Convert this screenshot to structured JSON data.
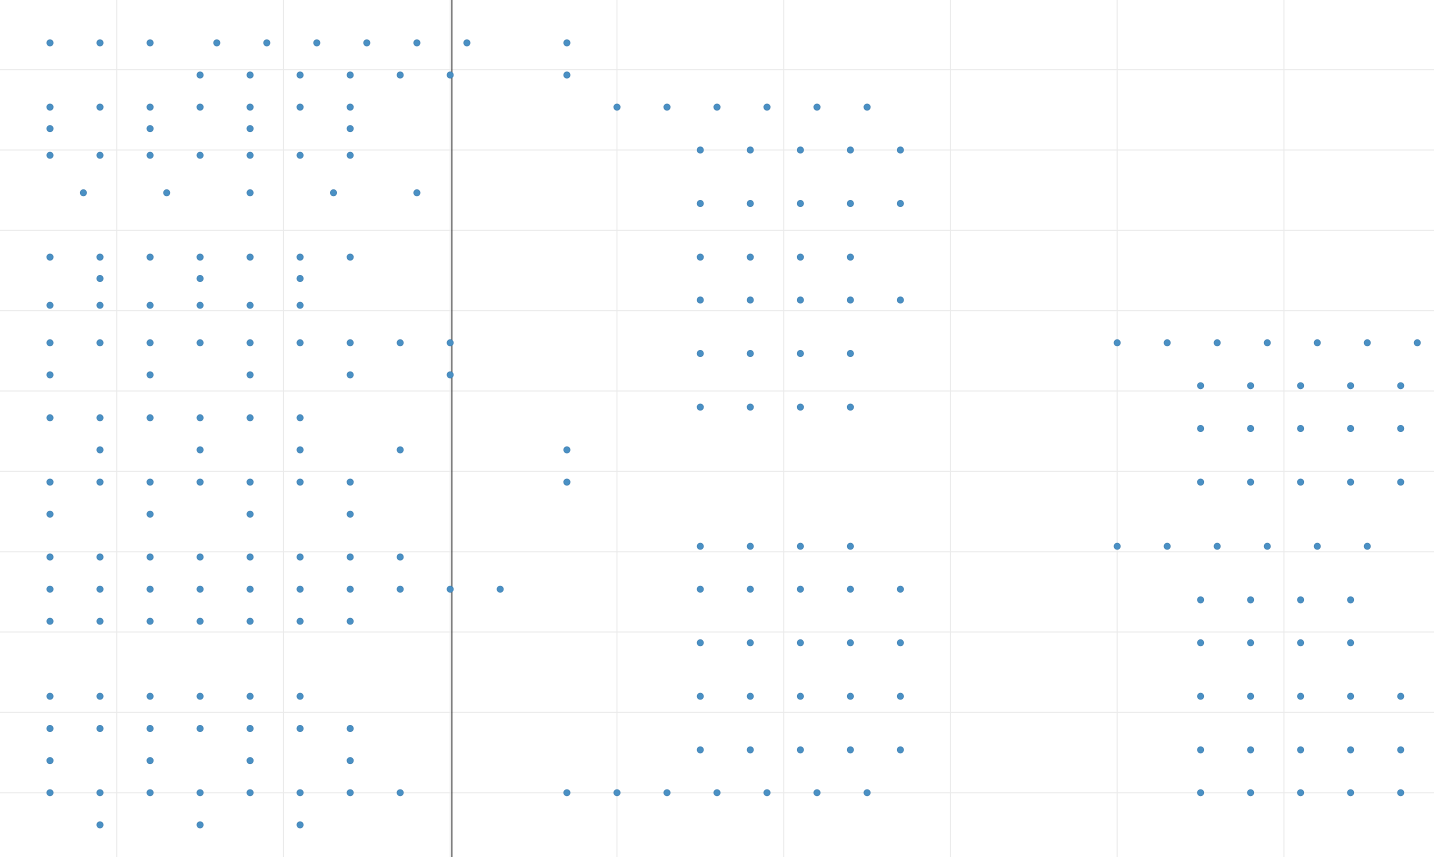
{
  "chart_data": {
    "type": "scatter",
    "grid": true,
    "colors": {
      "dot": "#4a90c4",
      "dot_stroke": "#3b7db0",
      "grid": "#eaeaea",
      "divider": "#333333",
      "background": "#ffffff"
    },
    "series": [
      {
        "points": [
          [
            0.3,
            8.0
          ],
          [
            0.6,
            8.0
          ],
          [
            0.9,
            8.0
          ],
          [
            1.3,
            8.0
          ],
          [
            1.6,
            8.0
          ],
          [
            1.9,
            8.0
          ],
          [
            2.2,
            8.0
          ],
          [
            2.5,
            8.0
          ],
          [
            2.8,
            8.0
          ],
          [
            1.2,
            7.7
          ],
          [
            1.5,
            7.7
          ],
          [
            1.8,
            7.7
          ],
          [
            2.1,
            7.7
          ],
          [
            2.4,
            7.7
          ],
          [
            2.7,
            7.7
          ],
          [
            0.3,
            7.4
          ],
          [
            0.6,
            7.4
          ],
          [
            0.9,
            7.4
          ],
          [
            1.2,
            7.4
          ],
          [
            1.5,
            7.4
          ],
          [
            1.8,
            7.4
          ],
          [
            2.1,
            7.4
          ],
          [
            0.3,
            7.2
          ],
          [
            0.9,
            7.2
          ],
          [
            1.5,
            7.2
          ],
          [
            2.1,
            7.2
          ],
          [
            0.3,
            6.95
          ],
          [
            0.6,
            6.95
          ],
          [
            0.9,
            6.95
          ],
          [
            1.2,
            6.95
          ],
          [
            1.5,
            6.95
          ],
          [
            1.8,
            6.95
          ],
          [
            2.1,
            6.95
          ],
          [
            0.5,
            6.6
          ],
          [
            1.0,
            6.6
          ],
          [
            1.5,
            6.6
          ],
          [
            2.0,
            6.6
          ],
          [
            2.5,
            6.6
          ],
          [
            0.3,
            6.0
          ],
          [
            0.6,
            6.0
          ],
          [
            0.9,
            6.0
          ],
          [
            1.2,
            6.0
          ],
          [
            1.5,
            6.0
          ],
          [
            1.8,
            6.0
          ],
          [
            2.1,
            6.0
          ],
          [
            0.6,
            5.8
          ],
          [
            1.2,
            5.8
          ],
          [
            1.8,
            5.8
          ],
          [
            0.3,
            5.55
          ],
          [
            0.6,
            5.55
          ],
          [
            0.9,
            5.55
          ],
          [
            1.2,
            5.55
          ],
          [
            1.5,
            5.55
          ],
          [
            1.8,
            5.55
          ],
          [
            0.3,
            5.2
          ],
          [
            0.6,
            5.2
          ],
          [
            0.9,
            5.2
          ],
          [
            1.2,
            5.2
          ],
          [
            1.5,
            5.2
          ],
          [
            1.8,
            5.2
          ],
          [
            2.1,
            5.2
          ],
          [
            2.4,
            5.2
          ],
          [
            2.7,
            5.2
          ],
          [
            0.3,
            4.9
          ],
          [
            0.9,
            4.9
          ],
          [
            1.5,
            4.9
          ],
          [
            2.1,
            4.9
          ],
          [
            2.7,
            4.9
          ],
          [
            0.3,
            4.5
          ],
          [
            0.6,
            4.5
          ],
          [
            0.9,
            4.5
          ],
          [
            1.2,
            4.5
          ],
          [
            1.5,
            4.5
          ],
          [
            1.8,
            4.5
          ],
          [
            0.6,
            4.2
          ],
          [
            1.2,
            4.2
          ],
          [
            1.8,
            4.2
          ],
          [
            2.4,
            4.2
          ],
          [
            0.3,
            3.9
          ],
          [
            0.6,
            3.9
          ],
          [
            0.9,
            3.9
          ],
          [
            1.2,
            3.9
          ],
          [
            1.5,
            3.9
          ],
          [
            1.8,
            3.9
          ],
          [
            2.1,
            3.9
          ],
          [
            0.3,
            3.6
          ],
          [
            0.9,
            3.6
          ],
          [
            1.5,
            3.6
          ],
          [
            2.1,
            3.6
          ],
          [
            0.3,
            3.2
          ],
          [
            0.6,
            3.2
          ],
          [
            0.9,
            3.2
          ],
          [
            1.2,
            3.2
          ],
          [
            1.5,
            3.2
          ],
          [
            1.8,
            3.2
          ],
          [
            2.1,
            3.2
          ],
          [
            2.4,
            3.2
          ],
          [
            0.3,
            2.9
          ],
          [
            0.6,
            2.9
          ],
          [
            0.9,
            2.9
          ],
          [
            1.2,
            2.9
          ],
          [
            1.5,
            2.9
          ],
          [
            1.8,
            2.9
          ],
          [
            2.1,
            2.9
          ],
          [
            2.4,
            2.9
          ],
          [
            2.7,
            2.9
          ],
          [
            3.0,
            2.9
          ],
          [
            0.3,
            2.6
          ],
          [
            0.6,
            2.6
          ],
          [
            0.9,
            2.6
          ],
          [
            1.2,
            2.6
          ],
          [
            1.5,
            2.6
          ],
          [
            1.8,
            2.6
          ],
          [
            2.1,
            2.6
          ],
          [
            0.3,
            1.9
          ],
          [
            0.6,
            1.9
          ],
          [
            0.9,
            1.9
          ],
          [
            1.2,
            1.9
          ],
          [
            1.5,
            1.9
          ],
          [
            1.8,
            1.9
          ],
          [
            0.3,
            1.6
          ],
          [
            0.6,
            1.6
          ],
          [
            0.9,
            1.6
          ],
          [
            1.2,
            1.6
          ],
          [
            1.5,
            1.6
          ],
          [
            1.8,
            1.6
          ],
          [
            2.1,
            1.6
          ],
          [
            0.3,
            1.3
          ],
          [
            0.9,
            1.3
          ],
          [
            1.5,
            1.3
          ],
          [
            2.1,
            1.3
          ],
          [
            0.3,
            1.0
          ],
          [
            0.6,
            1.0
          ],
          [
            0.9,
            1.0
          ],
          [
            1.2,
            1.0
          ],
          [
            1.5,
            1.0
          ],
          [
            1.8,
            1.0
          ],
          [
            2.1,
            1.0
          ],
          [
            2.4,
            1.0
          ],
          [
            0.6,
            0.7
          ],
          [
            1.2,
            0.7
          ],
          [
            1.8,
            0.7
          ],
          [
            3.4,
            8.0
          ],
          [
            3.4,
            7.7
          ],
          [
            3.7,
            7.4
          ],
          [
            4.0,
            7.4
          ],
          [
            4.3,
            7.4
          ],
          [
            4.6,
            7.4
          ],
          [
            4.9,
            7.4
          ],
          [
            5.2,
            7.4
          ],
          [
            4.2,
            7.0
          ],
          [
            4.5,
            7.0
          ],
          [
            4.8,
            7.0
          ],
          [
            5.1,
            7.0
          ],
          [
            5.4,
            7.0
          ],
          [
            4.2,
            6.5
          ],
          [
            4.5,
            6.5
          ],
          [
            4.8,
            6.5
          ],
          [
            5.1,
            6.5
          ],
          [
            5.4,
            6.5
          ],
          [
            4.2,
            6.0
          ],
          [
            4.5,
            6.0
          ],
          [
            4.8,
            6.0
          ],
          [
            5.1,
            6.0
          ],
          [
            4.2,
            5.6
          ],
          [
            4.5,
            5.6
          ],
          [
            4.8,
            5.6
          ],
          [
            5.1,
            5.6
          ],
          [
            5.4,
            5.6
          ],
          [
            4.2,
            5.1
          ],
          [
            4.5,
            5.1
          ],
          [
            4.8,
            5.1
          ],
          [
            5.1,
            5.1
          ],
          [
            4.2,
            4.6
          ],
          [
            4.5,
            4.6
          ],
          [
            4.8,
            4.6
          ],
          [
            5.1,
            4.6
          ],
          [
            3.4,
            4.2
          ],
          [
            3.4,
            3.9
          ],
          [
            4.2,
            3.3
          ],
          [
            4.5,
            3.3
          ],
          [
            4.8,
            3.3
          ],
          [
            5.1,
            3.3
          ],
          [
            4.2,
            2.9
          ],
          [
            4.5,
            2.9
          ],
          [
            4.8,
            2.9
          ],
          [
            5.1,
            2.9
          ],
          [
            5.4,
            2.9
          ],
          [
            4.2,
            2.4
          ],
          [
            4.5,
            2.4
          ],
          [
            4.8,
            2.4
          ],
          [
            5.1,
            2.4
          ],
          [
            5.4,
            2.4
          ],
          [
            4.2,
            1.9
          ],
          [
            4.5,
            1.9
          ],
          [
            4.8,
            1.9
          ],
          [
            5.1,
            1.9
          ],
          [
            5.4,
            1.9
          ],
          [
            4.2,
            1.4
          ],
          [
            4.5,
            1.4
          ],
          [
            4.8,
            1.4
          ],
          [
            5.1,
            1.4
          ],
          [
            5.4,
            1.4
          ],
          [
            3.4,
            1.0
          ],
          [
            3.7,
            1.0
          ],
          [
            4.0,
            1.0
          ],
          [
            4.3,
            1.0
          ],
          [
            4.6,
            1.0
          ],
          [
            4.9,
            1.0
          ],
          [
            5.2,
            1.0
          ],
          [
            6.7,
            5.2
          ],
          [
            7.0,
            5.2
          ],
          [
            7.3,
            5.2
          ],
          [
            7.6,
            5.2
          ],
          [
            7.9,
            5.2
          ],
          [
            8.2,
            5.2
          ],
          [
            8.5,
            5.2
          ],
          [
            7.2,
            4.8
          ],
          [
            7.5,
            4.8
          ],
          [
            7.8,
            4.8
          ],
          [
            8.1,
            4.8
          ],
          [
            8.4,
            4.8
          ],
          [
            7.2,
            4.4
          ],
          [
            7.5,
            4.4
          ],
          [
            7.8,
            4.4
          ],
          [
            8.1,
            4.4
          ],
          [
            8.4,
            4.4
          ],
          [
            7.2,
            3.9
          ],
          [
            7.5,
            3.9
          ],
          [
            7.8,
            3.9
          ],
          [
            8.1,
            3.9
          ],
          [
            8.4,
            3.9
          ],
          [
            6.7,
            3.3
          ],
          [
            7.0,
            3.3
          ],
          [
            7.3,
            3.3
          ],
          [
            7.6,
            3.3
          ],
          [
            7.9,
            3.3
          ],
          [
            8.2,
            3.3
          ],
          [
            7.2,
            2.8
          ],
          [
            7.5,
            2.8
          ],
          [
            7.8,
            2.8
          ],
          [
            8.1,
            2.8
          ],
          [
            7.2,
            2.4
          ],
          [
            7.5,
            2.4
          ],
          [
            7.8,
            2.4
          ],
          [
            8.1,
            2.4
          ],
          [
            7.2,
            1.9
          ],
          [
            7.5,
            1.9
          ],
          [
            7.8,
            1.9
          ],
          [
            8.1,
            1.9
          ],
          [
            8.4,
            1.9
          ],
          [
            7.2,
            1.4
          ],
          [
            7.5,
            1.4
          ],
          [
            7.8,
            1.4
          ],
          [
            8.1,
            1.4
          ],
          [
            8.4,
            1.4
          ],
          [
            7.2,
            1.0
          ],
          [
            7.5,
            1.0
          ],
          [
            7.8,
            1.0
          ],
          [
            8.1,
            1.0
          ],
          [
            8.4,
            1.0
          ]
        ]
      }
    ]
  }
}
